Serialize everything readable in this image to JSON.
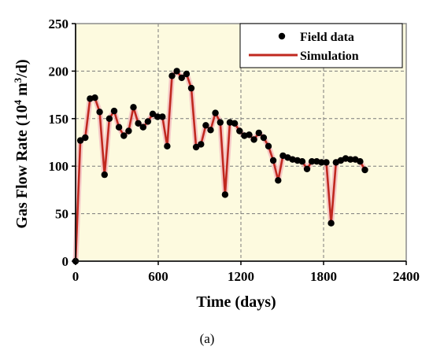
{
  "chart_data": {
    "type": "line",
    "panel_label": "(a)",
    "xlabel": "Time  (days)",
    "ylabel_main": "Gas Flow Rate  (10",
    "ylabel_sup1": "4",
    "ylabel_mid": " m",
    "ylabel_sup2": "3",
    "ylabel_end": "/d)",
    "xlim": [
      0,
      2400
    ],
    "ylim": [
      0,
      250
    ],
    "x_ticks": [
      0,
      600,
      1200,
      1800,
      2400
    ],
    "y_ticks": [
      0,
      50,
      100,
      150,
      200,
      250
    ],
    "grid": true,
    "plot_background": "#fdfadf",
    "legend_position": "top-right",
    "series": [
      {
        "name": "Field data",
        "style": "markers",
        "color": "#000000",
        "x": [
          0,
          35,
          70,
          105,
          140,
          175,
          210,
          245,
          280,
          315,
          350,
          385,
          420,
          455,
          490,
          525,
          560,
          595,
          630,
          665,
          700,
          735,
          770,
          805,
          840,
          875,
          910,
          945,
          980,
          1015,
          1050,
          1085,
          1120,
          1155,
          1190,
          1225,
          1260,
          1295,
          1330,
          1365,
          1400,
          1435,
          1470,
          1505,
          1540,
          1575,
          1610,
          1645,
          1680,
          1715,
          1750,
          1785,
          1820,
          1855,
          1890,
          1925,
          1960,
          1995,
          2030,
          2065,
          2100
        ],
        "y": [
          0,
          127,
          130,
          171,
          172,
          157,
          91,
          150,
          158,
          141,
          132,
          137,
          162,
          145,
          141,
          147,
          155,
          152,
          152,
          121,
          195,
          200,
          193,
          197,
          182,
          120,
          123,
          143,
          138,
          156,
          146,
          70,
          146,
          145,
          137,
          132,
          133,
          128,
          135,
          130,
          121,
          106,
          85,
          111,
          109,
          107,
          106,
          105,
          97,
          105,
          105,
          104,
          104,
          40,
          104,
          106,
          108,
          107,
          107,
          105,
          96
        ]
      },
      {
        "name": "Simulation",
        "style": "line",
        "color": "#c0281f"
      }
    ]
  }
}
